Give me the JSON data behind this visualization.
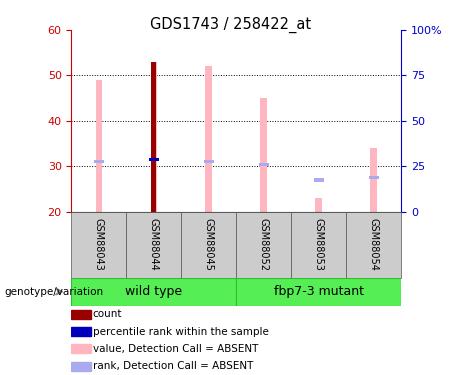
{
  "title": "GDS1743 / 258422_at",
  "samples": [
    "GSM88043",
    "GSM88044",
    "GSM88045",
    "GSM88052",
    "GSM88053",
    "GSM88054"
  ],
  "ylim_left": [
    20,
    60
  ],
  "ylim_right": [
    0,
    100
  ],
  "yticks_left": [
    20,
    30,
    40,
    50,
    60
  ],
  "yticks_right": [
    0,
    25,
    50,
    75,
    100
  ],
  "value_bars": [
    49.0,
    53.0,
    52.0,
    45.0,
    23.0,
    34.0
  ],
  "rank_bars": [
    31.0,
    31.5,
    31.0,
    30.5,
    27.0,
    27.5
  ],
  "count_bar_idx": 1,
  "count_bar_value": 53.0,
  "pink_color": "#FFB6C1",
  "lightblue_color": "#AAAAEE",
  "darkred_color": "#990000",
  "blue_color": "#0000BB",
  "groups": [
    {
      "label": "wild type",
      "start": 0,
      "end": 2
    },
    {
      "label": "fbp7-3 mutant",
      "start": 3,
      "end": 5
    }
  ],
  "group_label": "genotype/variation",
  "legend_items": [
    {
      "color": "#990000",
      "label": "count"
    },
    {
      "color": "#0000BB",
      "label": "percentile rank within the sample"
    },
    {
      "color": "#FFB6C1",
      "label": "value, Detection Call = ABSENT"
    },
    {
      "color": "#AAAAEE",
      "label": "rank, Detection Call = ABSENT"
    }
  ],
  "tick_color_left": "#CC0000",
  "tick_color_right": "#0000CC"
}
